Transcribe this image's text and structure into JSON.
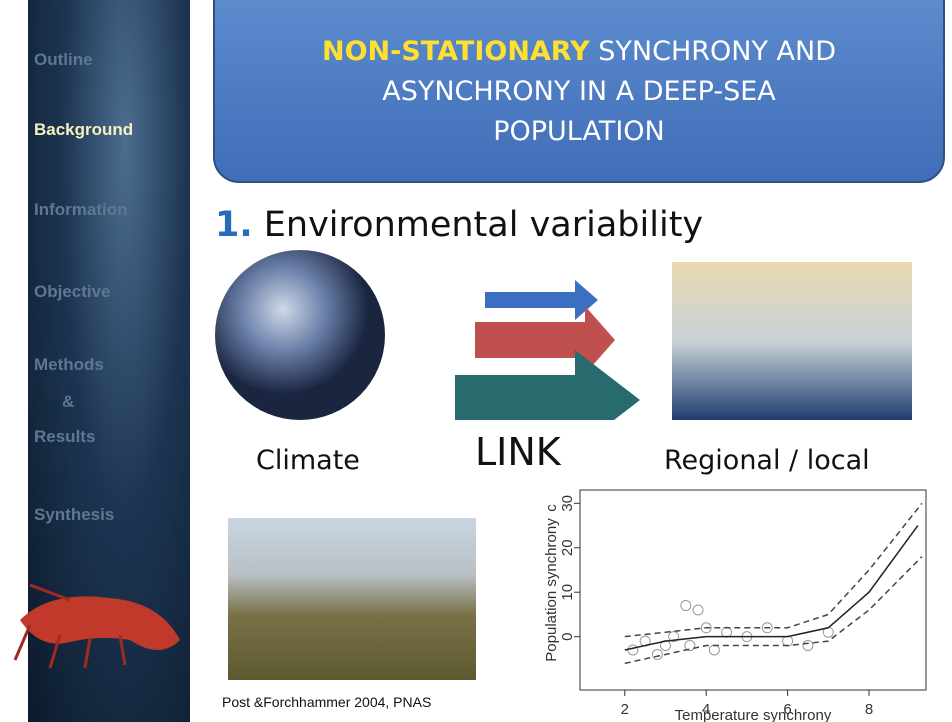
{
  "sidebar": {
    "items": [
      "Outline",
      "Background",
      "Information",
      "Objective",
      "Methods",
      "&",
      "Results",
      "Synthesis"
    ],
    "active": 1
  },
  "header": {
    "highlight": "NON-STATIONARY",
    "lines": [
      "SYNCHRONY AND",
      "ASYNCHRONY IN A DEEP-SEA",
      "POPULATION"
    ]
  },
  "heading": {
    "number": "1.",
    "text": "Environmental variability"
  },
  "diagram": {
    "left": "Climate",
    "middle": "LINK",
    "right": "Regional / local"
  },
  "caption": "Post &Forchhammer 2004, PNAS",
  "chart_data": {
    "type": "scatter",
    "panel": "c",
    "x_label": "Temperature synchrony",
    "y_label": "Population synchrony",
    "xlim": [
      0.9,
      9.4
    ],
    "ylim": [
      -12,
      33
    ],
    "xticks": [
      2,
      4,
      6,
      8
    ],
    "yticks": [
      0,
      10,
      20,
      30
    ],
    "series": [
      {
        "style": "points",
        "color": "#999999",
        "x": [
          2.2,
          2.5,
          2.8,
          3.0,
          3.2,
          3.5,
          3.6,
          3.8,
          4.0,
          4.2,
          4.5,
          5.0,
          5.5,
          6.0,
          6.5,
          7.0
        ],
        "values": [
          -3,
          -1,
          -4,
          -2,
          0,
          7,
          -2,
          6,
          2,
          -3,
          1,
          0,
          2,
          -1,
          -2,
          1
        ]
      },
      {
        "style": "solid",
        "color": "#222222",
        "x": [
          2,
          3,
          4,
          5,
          6,
          7,
          8,
          9.2
        ],
        "values": [
          -3,
          -1,
          0,
          0,
          0,
          2,
          10,
          25
        ]
      },
      {
        "style": "dashed",
        "color": "#444444",
        "x": [
          2,
          4,
          6,
          7,
          8,
          9.3
        ],
        "values": [
          0,
          2,
          2,
          5,
          15,
          30
        ]
      },
      {
        "style": "dashed",
        "color": "#444444",
        "x": [
          2,
          4,
          6,
          7,
          8,
          9.3
        ],
        "values": [
          -6,
          -2,
          -2,
          -1,
          6,
          18
        ]
      }
    ]
  }
}
